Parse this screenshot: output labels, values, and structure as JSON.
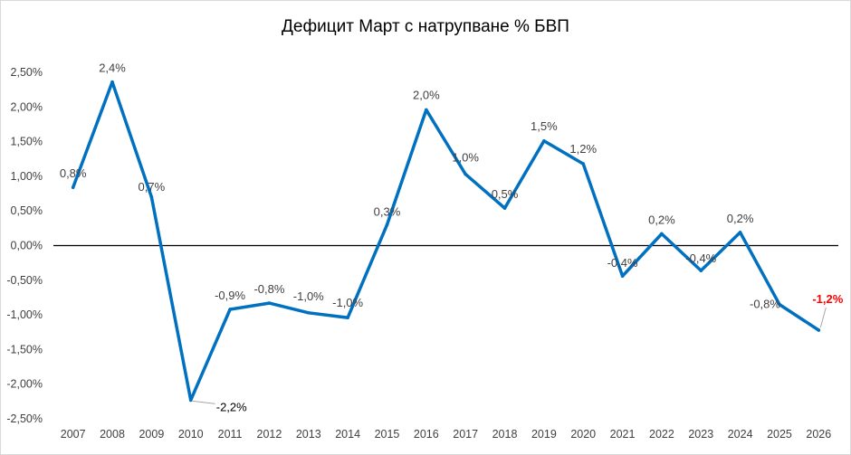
{
  "chart_data": {
    "type": "line",
    "title": "Дефицит Март с натрупване % БВП",
    "xlabel": "",
    "ylabel": "",
    "ylim": [
      -2.5,
      2.5
    ],
    "y_ticks": [
      "-2,50%",
      "-2,00%",
      "-1,50%",
      "-1,00%",
      "-0,50%",
      "0,00%",
      "0,50%",
      "1,00%",
      "1,50%",
      "2,00%",
      "2,50%"
    ],
    "categories": [
      "2007",
      "2008",
      "2009",
      "2010",
      "2011",
      "2012",
      "2013",
      "2014",
      "2015",
      "2016",
      "2017",
      "2018",
      "2019",
      "2020",
      "2021",
      "2022",
      "2023",
      "2024",
      "2025",
      "2026"
    ],
    "series": [
      {
        "color": "#0070c0",
        "values": [
          0.84,
          2.36,
          0.7,
          -2.23,
          -0.92,
          -0.83,
          -0.97,
          -1.04,
          0.3,
          1.96,
          1.03,
          0.54,
          1.51,
          1.18,
          -0.44,
          0.17,
          -0.36,
          0.19,
          -0.85,
          -1.22
        ],
        "labels": [
          "0,8%",
          "2,4%",
          "0,7%",
          "-2,2%",
          "-0,9%",
          "-0,8%",
          "-1,0%",
          "-1,0%",
          "0,3%",
          "2,0%",
          "1,0%",
          "0,5%",
          "1,5%",
          "1,2%",
          "-0,4%",
          "0,2%",
          "-0,4%",
          "0,2%",
          "-0,8%",
          "-1,2%"
        ]
      }
    ],
    "highlight": {
      "index": 19,
      "color": "#ff0000"
    },
    "zero_line": true,
    "grid": false,
    "legend": "none"
  }
}
